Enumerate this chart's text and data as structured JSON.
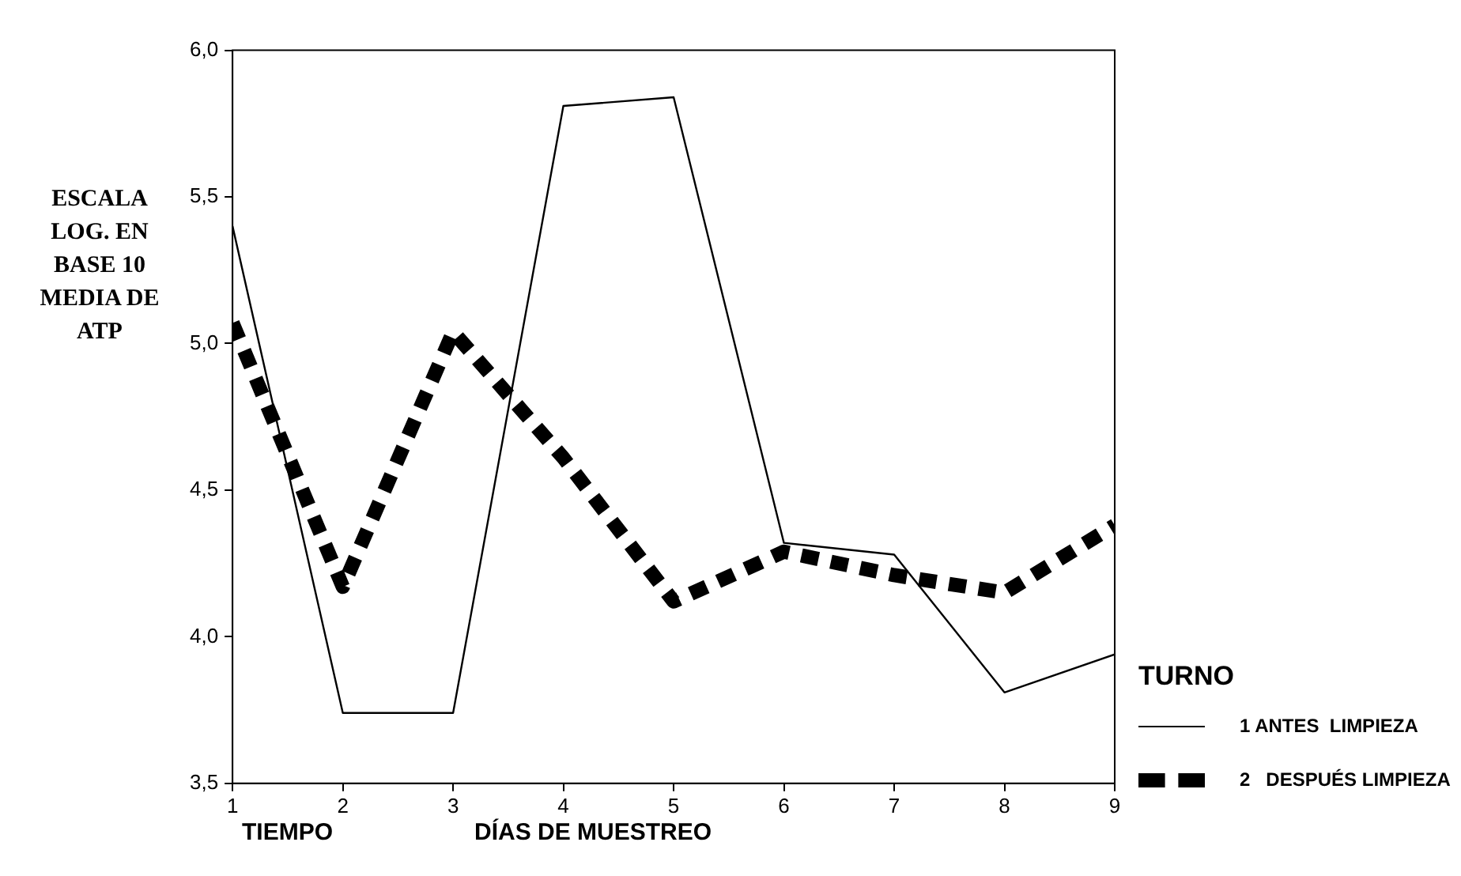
{
  "chart_data": {
    "type": "line",
    "xlabel": "DÍAS DE MUESTREO",
    "ylabel": "ESCALA LOG. EN BASE 10 MEDIA DE ATP",
    "legend_title": "TURNO",
    "annotations": [
      "TIEMPO"
    ],
    "x": [
      1,
      2,
      3,
      4,
      5,
      6,
      7,
      8,
      9
    ],
    "xlim": [
      1,
      9
    ],
    "xticks": [
      1,
      2,
      3,
      4,
      5,
      6,
      7,
      8,
      9
    ],
    "ylim": [
      3.5,
      6.0
    ],
    "yticks": [
      {
        "value": 3.5,
        "label": "3,5"
      },
      {
        "value": 4.0,
        "label": "4,0"
      },
      {
        "value": 4.5,
        "label": "4,5"
      },
      {
        "value": 5.0,
        "label": "5,0"
      },
      {
        "value": 5.5,
        "label": "5,5"
      },
      {
        "value": 6.0,
        "label": "6,0"
      }
    ],
    "legend": "right",
    "marker": "none",
    "series": [
      {
        "name": "1 ANTES  LIMPIEZA",
        "color": "#000000",
        "line_style": "solid",
        "values": [
          5.4,
          3.74,
          3.74,
          5.81,
          5.84,
          4.32,
          4.28,
          3.81,
          3.94
        ]
      },
      {
        "name": "2   DESPUÉS LIMPIEZA",
        "color": "#000000",
        "line_style": "dashed",
        "values": [
          5.07,
          4.17,
          5.04,
          4.61,
          4.12,
          4.29,
          4.21,
          4.15,
          4.38
        ]
      }
    ]
  }
}
